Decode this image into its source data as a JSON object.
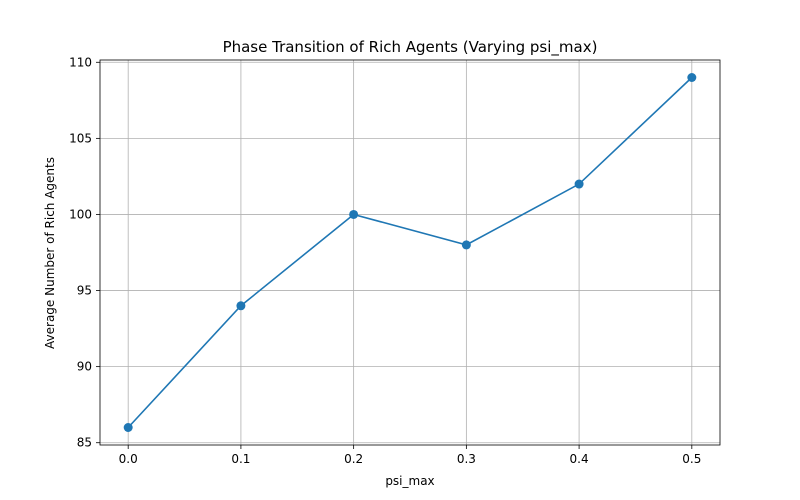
{
  "chart_data": {
    "type": "line",
    "title": "Phase Transition of Rich Agents (Varying psi_max)",
    "xlabel": "psi_max",
    "ylabel": "Average Number of Rich Agents",
    "x": [
      0.0,
      0.1,
      0.2,
      0.3,
      0.4,
      0.5
    ],
    "xtick_labels": [
      "0.0",
      "0.1",
      "0.2",
      "0.3",
      "0.4",
      "0.5"
    ],
    "yticks": [
      85,
      90,
      95,
      100,
      105,
      110
    ],
    "xlim": [
      -0.025,
      0.525
    ],
    "ylim": [
      84.85,
      110.15
    ],
    "grid": true,
    "series": [
      {
        "values": [
          86,
          94,
          100,
          98,
          102,
          109
        ],
        "color": "#1f77b4",
        "marker": "circle"
      }
    ]
  }
}
